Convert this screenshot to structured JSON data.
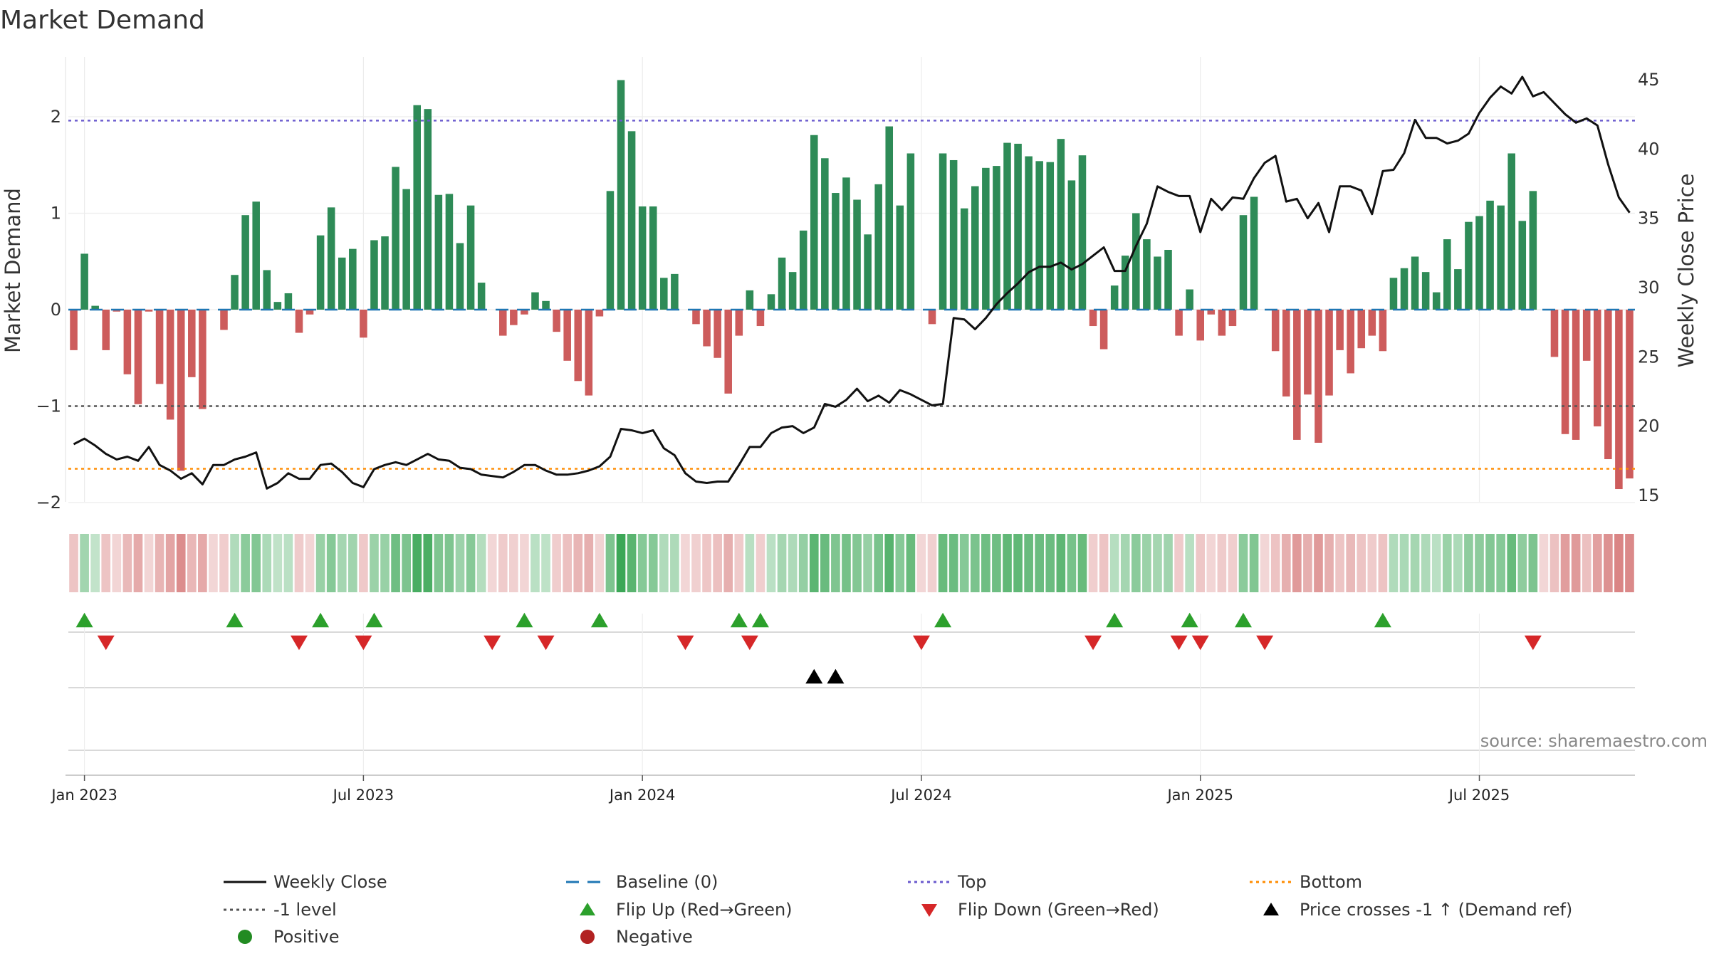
{
  "chart_data": {
    "type": "bar",
    "title": "Market Demand",
    "ylabel_left": "Market Demand",
    "ylabel_right": "Weekly Close Price",
    "source": "source: sharemaestro.com",
    "ylim_left": [
      -2.0,
      2.4
    ],
    "ylim_right": [
      15,
      46
    ],
    "yticks_left": [
      {
        "v": 2,
        "label": "2"
      },
      {
        "v": 1,
        "label": "1"
      },
      {
        "v": 0,
        "label": "0"
      },
      {
        "v": -1,
        "label": "−1"
      },
      {
        "v": -2,
        "label": "−2"
      }
    ],
    "yticks_right": [
      {
        "v": 45,
        "label": "45"
      },
      {
        "v": 40,
        "label": "40"
      },
      {
        "v": 35,
        "label": "35"
      },
      {
        "v": 30,
        "label": "30"
      },
      {
        "v": 25,
        "label": "25"
      },
      {
        "v": 20,
        "label": "20"
      },
      {
        "v": 15,
        "label": "15"
      }
    ],
    "x_ticks": [
      {
        "i": 1,
        "label": "Jan 2023"
      },
      {
        "i": 27,
        "label": "Jul 2023"
      },
      {
        "i": 53,
        "label": "Jan 2024"
      },
      {
        "i": 79,
        "label": "Jul 2024"
      },
      {
        "i": 105,
        "label": "Jan 2025"
      },
      {
        "i": 131,
        "label": "Jul 2025"
      }
    ],
    "reference_lines": {
      "top": 1.96,
      "minus1": -1.0,
      "bottom": -1.65,
      "baseline": 0
    },
    "demand": [
      -0.42,
      0.58,
      0.04,
      -0.42,
      -0.02,
      -0.67,
      -0.98,
      -0.02,
      -0.77,
      -1.14,
      -1.67,
      -0.7,
      -1.03,
      0,
      -0.21,
      0.36,
      0.98,
      1.12,
      0.41,
      0.08,
      0.17,
      -0.24,
      -0.05,
      0.77,
      1.06,
      0.54,
      0.63,
      -0.29,
      0.72,
      0.76,
      1.48,
      1.25,
      2.12,
      2.08,
      1.19,
      1.2,
      0.69,
      1.08,
      0.28,
      0,
      -0.27,
      -0.16,
      -0.05,
      0.18,
      0.09,
      -0.23,
      -0.53,
      -0.74,
      -0.89,
      -0.07,
      1.23,
      2.38,
      1.85,
      1.07,
      1.07,
      0.33,
      0.37,
      0,
      -0.15,
      -0.38,
      -0.5,
      -0.87,
      -0.27,
      0.2,
      -0.17,
      0.16,
      0.54,
      0.39,
      0.82,
      1.81,
      1.57,
      1.21,
      1.37,
      1.14,
      0.78,
      1.3,
      1.9,
      1.08,
      1.62,
      0,
      -0.15,
      1.62,
      1.55,
      1.05,
      1.28,
      1.47,
      1.49,
      1.73,
      1.72,
      1.59,
      1.54,
      1.53,
      1.77,
      1.34,
      1.6,
      -0.17,
      -0.41,
      0.25,
      0.56,
      1.0,
      0.73,
      0.55,
      0.62,
      -0.27,
      0.21,
      -0.32,
      -0.05,
      -0.27,
      -0.17,
      0.98,
      1.17,
      0,
      -0.43,
      -0.9,
      -1.35,
      -0.88,
      -1.38,
      -0.89,
      -0.42,
      -0.66,
      -0.4,
      -0.27,
      -0.43,
      0.33,
      0.43,
      0.55,
      0.39,
      0.18,
      0.73,
      0.42,
      0.91,
      0.97,
      1.13,
      1.08,
      1.62,
      0.92,
      1.23,
      0,
      -0.49,
      -1.29,
      -1.35,
      -0.53,
      -1.21,
      -1.55,
      -1.86,
      -1.75
    ],
    "price": [
      18.7,
      19.1,
      18.6,
      18.0,
      17.6,
      17.8,
      17.5,
      18.5,
      17.2,
      16.8,
      16.2,
      16.6,
      15.8,
      17.2,
      17.2,
      17.6,
      17.8,
      18.1,
      15.5,
      15.9,
      16.6,
      16.2,
      16.2,
      17.2,
      17.3,
      16.7,
      15.9,
      15.6,
      16.9,
      17.2,
      17.4,
      17.2,
      17.6,
      18.0,
      17.6,
      17.5,
      17.0,
      16.9,
      16.5,
      16.4,
      16.3,
      16.7,
      17.2,
      17.2,
      16.8,
      16.5,
      16.5,
      16.6,
      16.8,
      17.1,
      17.8,
      19.8,
      19.7,
      19.5,
      19.7,
      18.4,
      17.9,
      16.6,
      16.0,
      15.9,
      16.0,
      16.0,
      17.2,
      18.5,
      18.5,
      19.5,
      19.9,
      20.0,
      19.5,
      19.9,
      21.6,
      21.4,
      21.9,
      22.7,
      21.8,
      22.2,
      21.7,
      22.6,
      22.3,
      21.9,
      21.5,
      21.6,
      27.8,
      27.7,
      27.0,
      27.8,
      28.8,
      29.6,
      30.3,
      31.1,
      31.5,
      31.5,
      31.8,
      31.3,
      31.7,
      32.3,
      32.9,
      31.2,
      31.2,
      33.0,
      34.6,
      37.3,
      36.9,
      36.6,
      36.6,
      34.0,
      36.4,
      35.6,
      36.5,
      36.4,
      37.9,
      39.0,
      39.5,
      36.2,
      36.4,
      35.0,
      36.1,
      34.0,
      37.3,
      37.3,
      37.0,
      35.3,
      38.4,
      38.5,
      39.7,
      42.1,
      40.8,
      40.8,
      40.4,
      40.6,
      41.1,
      42.6,
      43.7,
      44.5,
      44.0,
      45.2,
      43.8,
      44.1,
      43.3,
      42.5,
      41.9,
      42.2,
      41.7,
      38.9,
      36.5,
      35.4
    ],
    "flip_up": [
      1,
      15,
      23,
      28,
      42,
      49,
      62,
      64,
      81,
      97,
      104,
      109,
      122
    ],
    "flip_down": [
      3,
      21,
      27,
      39,
      44,
      57,
      63,
      79,
      95,
      103,
      105,
      111,
      136
    ],
    "price_cross_events": [
      69,
      71
    ],
    "legend": [
      {
        "key": "weekly_close",
        "label": "Weekly Close"
      },
      {
        "key": "baseline",
        "label": "Baseline (0)"
      },
      {
        "key": "top",
        "label": "Top"
      },
      {
        "key": "bottom",
        "label": "Bottom"
      },
      {
        "key": "minus1",
        "label": "-1 level"
      },
      {
        "key": "flip_up",
        "label": "Flip Up (Red→Green)"
      },
      {
        "key": "flip_down",
        "label": "Flip Down (Green→Red)"
      },
      {
        "key": "price_cross",
        "label": "Price crosses -1 ↑ (Demand ref)"
      },
      {
        "key": "positive",
        "label": "Positive"
      },
      {
        "key": "negative",
        "label": "Negative"
      }
    ],
    "colors": {
      "pos_bar": "#2e8b57",
      "neg_bar": "#cd5c5c",
      "price_line": "#111111",
      "baseline": "#1f77b4",
      "top": "#6a5acd",
      "minus1": "#555555",
      "bottom": "#ff8c00",
      "flip_up": "#2ca02c",
      "flip_down": "#d62728",
      "price_cross": "#000000",
      "positive_dot": "#228b22",
      "negative_dot": "#b22222",
      "strip_green": "#3aa655",
      "strip_red": "#cd5c5c"
    }
  }
}
